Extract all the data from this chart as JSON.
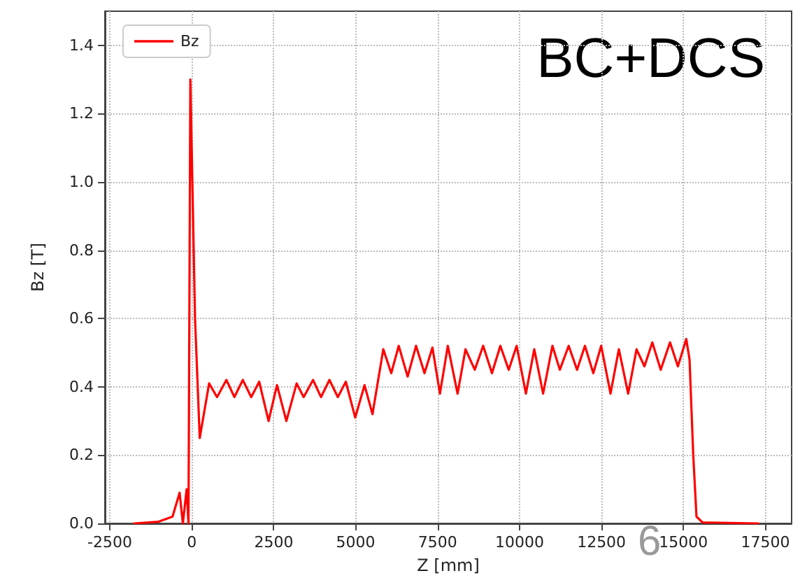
{
  "chart_data": {
    "type": "line",
    "xlabel": "Z [mm]",
    "ylabel": "Bz [T]",
    "annotations": [
      "BC+DCS",
      "6"
    ],
    "xlim": [
      -2650,
      18300
    ],
    "xticks": [
      -2500,
      0,
      2500,
      5000,
      7500,
      10000,
      12500,
      15000,
      17500
    ],
    "ylim": [
      0,
      1.5
    ],
    "yticks": [
      {
        "value": 0,
        "label": "0.0"
      },
      {
        "value": 0.2,
        "label": "0.2"
      },
      {
        "value": 0.4,
        "label": "0.4"
      },
      {
        "value": 0.6,
        "label": "0.6"
      },
      {
        "value": 0.8,
        "label": "0.8"
      },
      {
        "value": 1,
        "label": "1.0"
      },
      {
        "value": 1.2,
        "label": "1.2"
      },
      {
        "value": 1.4,
        "label": "1.4"
      }
    ],
    "grid": true,
    "legend": "top left",
    "marker": "none",
    "line_style": "solid",
    "series": [
      {
        "name": "Bz",
        "color": "#ff0000",
        "x": [
          -1757,
          -1014,
          -586,
          -371,
          -271,
          -157,
          -100,
          -43,
          100,
          243,
          529,
          771,
          1057,
          1300,
          1557,
          1814,
          2057,
          2343,
          2600,
          2886,
          3200,
          3414,
          3700,
          3943,
          4200,
          4457,
          4700,
          4986,
          5271,
          5514,
          5843,
          6086,
          6314,
          6586,
          6843,
          7100,
          7343,
          7571,
          7812,
          8110,
          8351,
          8634,
          8890,
          9159,
          9414,
          9670,
          9911,
          10194,
          10449,
          10719,
          11003,
          11229,
          11499,
          11754,
          11995,
          12250,
          12491,
          12775,
          13030,
          13314,
          13569,
          13810,
          14051,
          14306,
          14590,
          14831,
          15086,
          15186,
          15299,
          15398,
          15583,
          17285
        ],
        "values": [
          0,
          0.005,
          0.02,
          0.09,
          0,
          0.1,
          0,
          1.3,
          0.6,
          0.25,
          0.41,
          0.37,
          0.42,
          0.37,
          0.42,
          0.37,
          0.415,
          0.3,
          0.405,
          0.3,
          0.41,
          0.37,
          0.42,
          0.37,
          0.42,
          0.37,
          0.415,
          0.31,
          0.405,
          0.32,
          0.51,
          0.44,
          0.52,
          0.43,
          0.52,
          0.44,
          0.515,
          0.38,
          0.52,
          0.38,
          0.51,
          0.45,
          0.52,
          0.44,
          0.52,
          0.45,
          0.52,
          0.38,
          0.51,
          0.38,
          0.52,
          0.45,
          0.52,
          0.45,
          0.52,
          0.44,
          0.52,
          0.38,
          0.51,
          0.38,
          0.51,
          0.46,
          0.53,
          0.45,
          0.53,
          0.46,
          0.54,
          0.48,
          0.2,
          0.02,
          0.003,
          0
        ]
      }
    ]
  }
}
